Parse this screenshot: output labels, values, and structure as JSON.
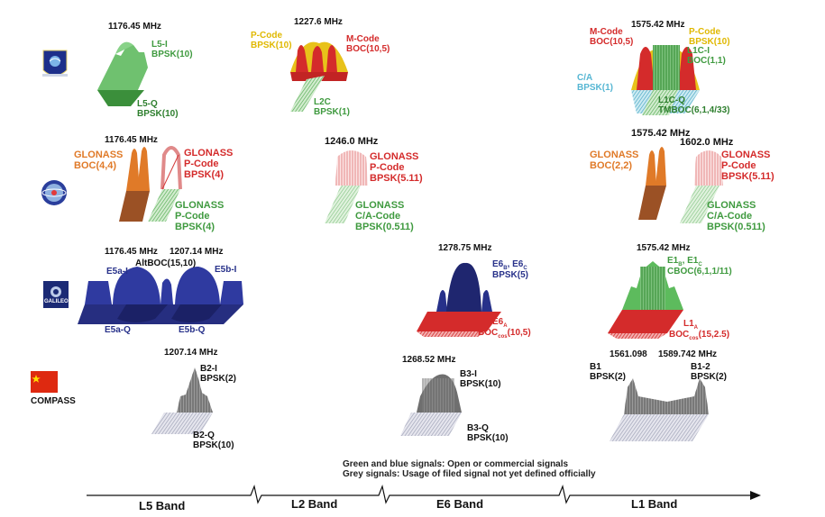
{
  "colors": {
    "gps_green": "#3f9a3f",
    "gps_yellow": "#e8c21a",
    "gps_red": "#d42b2b",
    "gps_cyan": "#56b6d3",
    "glonass_orange": "#e07a28",
    "glonass_red": "#d63838",
    "galileo_blue": "#27318a",
    "galileo_red": "#d42b2b",
    "compass_grey": "#888888",
    "grey_text": "#111111"
  },
  "gps": {
    "l5_freq": "1176.45 MHz",
    "l5_i": "L5-I\nBPSK(10)",
    "l5_q": "L5-Q\nBPSK(10)",
    "l2_freq": "1227.6 MHz",
    "l2_p": "P-Code\nBPSK(10)",
    "l2_m": "M-Code\nBOC(10,5)",
    "l2c": "L2C\nBPSK(1)",
    "l1_freq": "1575.42 MHz",
    "l1_m": "M-Code\nBOC(10,5)",
    "l1_p": "P-Code\nBPSK(10)",
    "l1c_i": "L1C-I\nBOC(1,1)",
    "ca": "C/A\nBPSK(1)",
    "l1c_q": "L1C-Q\nTMBOC(6,1,4/33)"
  },
  "glonass": {
    "l5_freq": "1176.45 MHz",
    "boc44": "GLONASS\nBOC(4,4)",
    "pcode4": "GLONASS\nP-Code\nBPSK(4)",
    "pcode4_green": "GLONASS\nP-Code\nBPSK(4)",
    "e6_freq": "1246.0 MHz",
    "pcode511": "GLONASS\nP-Code\nBPSK(5.11)",
    "ca511": "GLONASS\nC/A-Code\nBPSK(0.511)",
    "l1_freq_a": "1575.42 MHz",
    "l1_freq_b": "1602.0 MHz",
    "boc22": "GLONASS\nBOC(2,2)",
    "l1_pcode": "GLONASS\nP-Code\nBPSK(5.11)",
    "l1_ca": "GLONASS\nC/A-Code\nBPSK(0.511)"
  },
  "galileo": {
    "freq_a": "1176.45 MHz",
    "freq_b": "1207.14 MHz",
    "altboc": "AltBOC(15,10)",
    "e5a_i": "E5a-I",
    "e5b_i": "E5b-I",
    "e5a_q": "E5a-Q",
    "e5b_q": "E5b-Q",
    "e6_freq": "1278.75 MHz",
    "e6bc_main": "E6",
    "e6bc_sub1": "B",
    "e6bc_mid": ", E6",
    "e6bc_sub2": "C",
    "e6bc_mod": "BPSK(5)",
    "e6a_main": "E6",
    "e6a_sub": "A",
    "e6a_boc": "BOC",
    "e6a_boc_sub": "cos",
    "e6a_params": "(10,5)",
    "l1_freq": "1575.42 MHz",
    "e1bc_main": "E1",
    "e1bc_sub1": "B",
    "e1bc_mid": ", E1",
    "e1bc_sub2": "C",
    "e1bc_mod": "CBOC(6,1,1/11)",
    "l1a_main": "L1",
    "l1a_sub": "A",
    "l1a_boc": "BOC",
    "l1a_boc_sub": "cos",
    "l1a_params": "(15,2.5)",
    "logo_text": "GALILEO"
  },
  "compass": {
    "label": "COMPASS",
    "b2_freq": "1207.14 MHz",
    "b2_i": "B2-I\nBPSK(2)",
    "b2_q": "B2-Q\nBPSK(10)",
    "b3_freq": "1268.52 MHz",
    "b3_i": "B3-I\nBPSK(10)",
    "b3_q": "B3-Q\nBPSK(10)",
    "b1_freq_a": "1561.098",
    "b1_freq_b": "1589.742 MHz",
    "b1": "B1\nBPSK(2)",
    "b1_2": "B1-2\nBPSK(2)"
  },
  "notes": {
    "line1": "Green and blue signals: Open or commercial signals",
    "line2": "Grey signals: Usage of filed signal not yet defined officially"
  },
  "bands": {
    "l5": "L5 Band",
    "l2": "L2 Band",
    "e6": "E6 Band",
    "l1": "L1 Band"
  }
}
